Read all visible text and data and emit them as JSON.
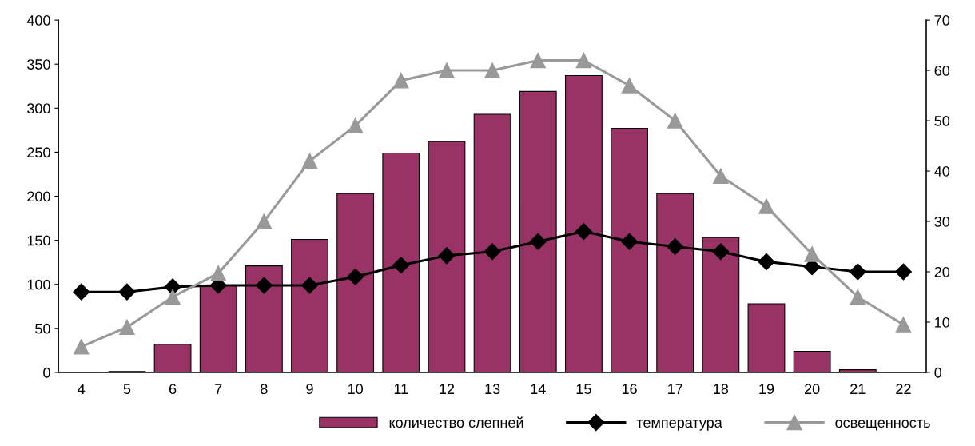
{
  "chart_data": {
    "type": "bar",
    "categories": [
      "4",
      "5",
      "6",
      "7",
      "8",
      "9",
      "10",
      "11",
      "12",
      "13",
      "14",
      "15",
      "16",
      "17",
      "18",
      "19",
      "20",
      "21",
      "22"
    ],
    "series": [
      {
        "name": "количество слепней",
        "color": "#993366",
        "values": [
          0,
          1,
          32,
          99,
          121,
          151,
          203,
          249,
          262,
          293,
          319,
          337,
          277,
          203,
          153,
          78,
          24,
          3,
          0
        ]
      },
      {
        "name": "температура",
        "type": "line",
        "axis": "y2",
        "color": "#000000",
        "marker": "diamond",
        "values": [
          16,
          16,
          17,
          17.3,
          17.3,
          17.3,
          19,
          21.3,
          23.2,
          24,
          26,
          28,
          26,
          25,
          24,
          22,
          21,
          20,
          20
        ]
      },
      {
        "name": "освещенность",
        "type": "line",
        "axis": "y2",
        "color": "#999999",
        "marker": "triangle",
        "values": [
          5.1,
          9,
          15,
          19.7,
          30,
          42,
          49,
          58,
          60,
          60,
          62,
          62,
          57,
          50,
          39,
          33,
          23.5,
          15,
          9.5
        ]
      }
    ],
    "ylim": [
      0,
      400
    ],
    "yticks": [
      0,
      50,
      100,
      150,
      200,
      250,
      300,
      350,
      400
    ],
    "y2lim": [
      0,
      70
    ],
    "y2ticks": [
      0,
      10,
      20,
      30,
      40,
      50,
      60,
      70
    ],
    "grid": false,
    "legend": "bottom"
  }
}
